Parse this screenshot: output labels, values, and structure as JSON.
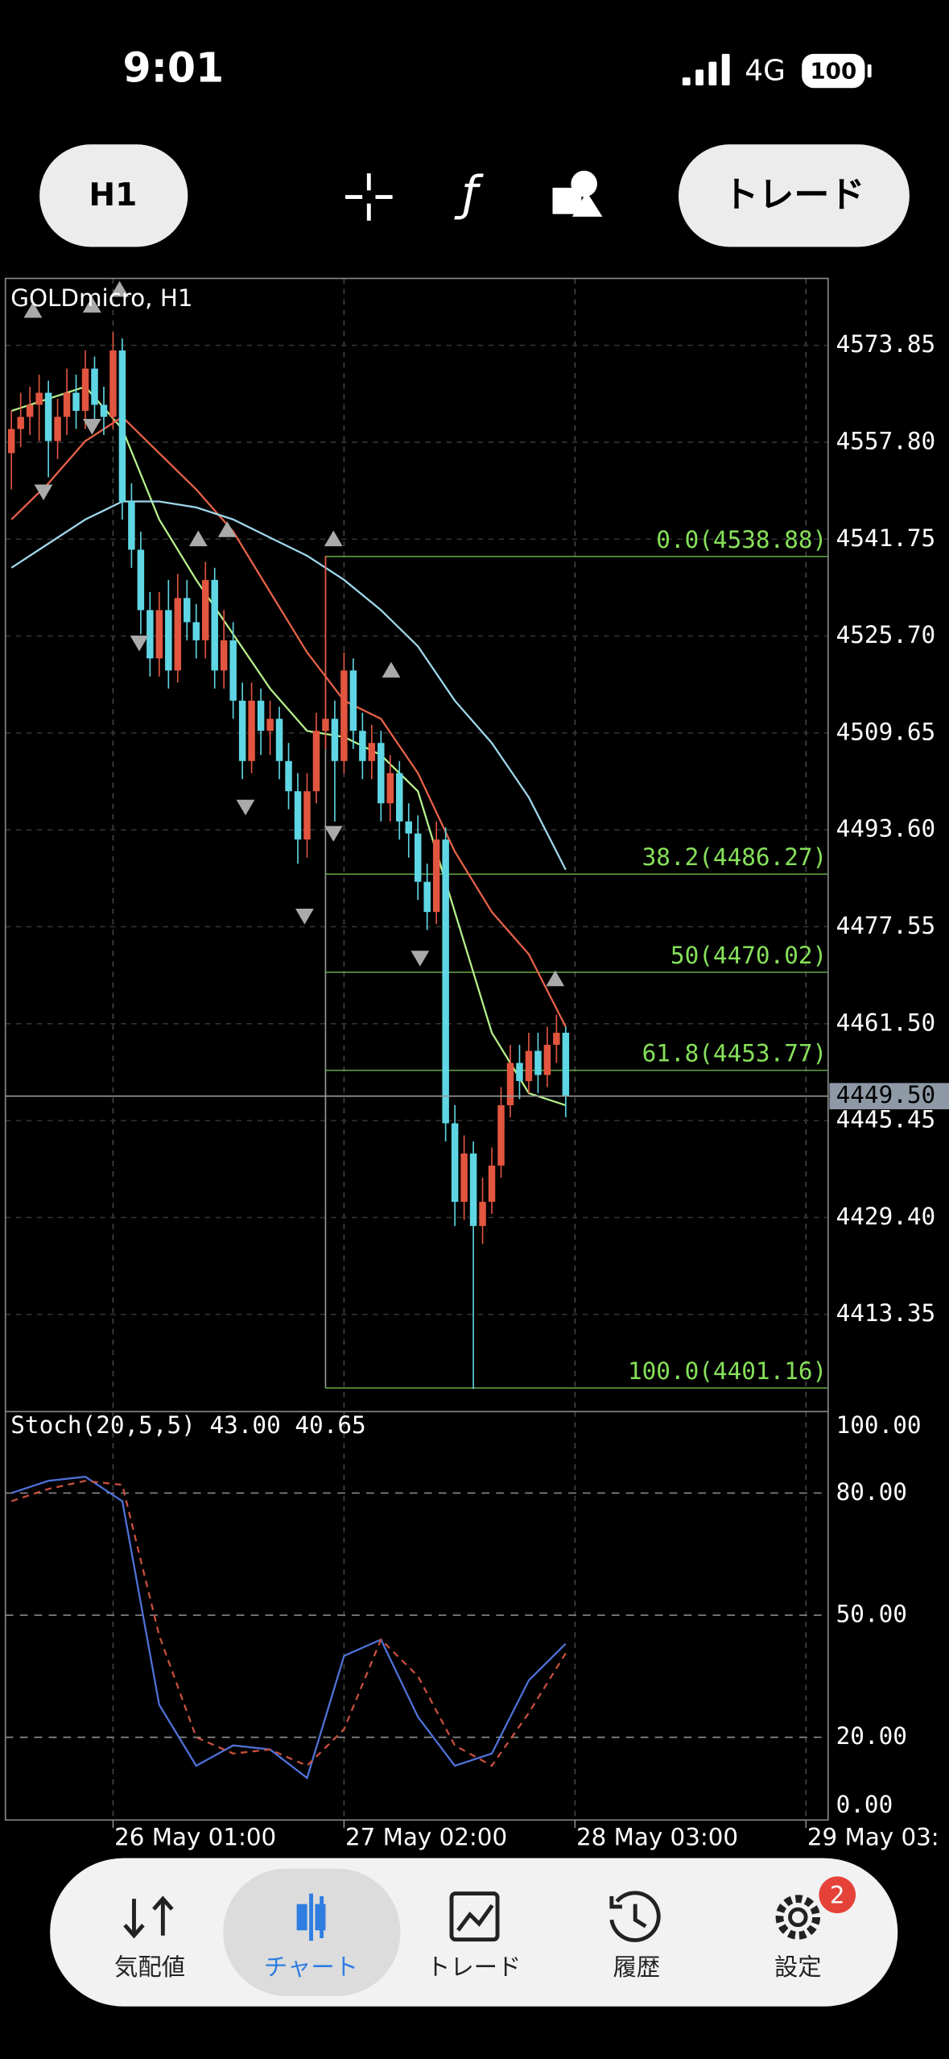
{
  "status_bar": {
    "time": "9:01",
    "network": "4G",
    "battery": "100"
  },
  "toolbar": {
    "timeframe": "H1",
    "trade_button": "トレード"
  },
  "chart_data": [
    {
      "type": "candlestick",
      "title": "GOLDmicro, H1",
      "up_color": "#e2553f",
      "down_color": "#5fd6e4",
      "x": [
        0,
        1,
        2,
        3,
        4,
        5,
        6,
        7,
        8,
        9,
        10,
        11,
        12,
        13,
        14,
        15,
        16,
        17,
        18,
        19,
        20,
        21,
        22,
        23,
        24,
        25,
        26,
        27,
        28,
        29,
        30,
        31,
        32,
        33,
        34,
        35,
        36,
        37,
        38,
        39,
        40,
        41,
        42,
        43,
        44,
        45,
        46,
        47,
        48,
        49,
        50,
        51,
        52,
        53,
        54,
        55,
        56,
        57,
        58,
        59,
        60
      ],
      "open": [
        4556,
        4560,
        4562,
        4564,
        4566,
        4558,
        4562,
        4566,
        4563,
        4570,
        4564,
        4562,
        4573,
        4548,
        4540,
        4530,
        4522,
        4530,
        4520,
        4532,
        4528,
        4525,
        4535,
        4520,
        4525,
        4515,
        4505,
        4515,
        4510,
        4512,
        4505,
        4500,
        4492,
        4500,
        4510,
        4512,
        4505,
        4520,
        4510,
        4505,
        4508,
        4498,
        4503,
        4495,
        4493,
        4485,
        4480,
        4492,
        4445,
        4432,
        4440,
        4428,
        4432,
        4438,
        4448,
        4455,
        4452,
        4457,
        4453,
        4458,
        4460
      ],
      "high": [
        4563,
        4566,
        4567,
        4569,
        4568,
        4565,
        4570,
        4569,
        4573,
        4572,
        4567,
        4576,
        4575,
        4551,
        4543,
        4533,
        4533,
        4535,
        4536,
        4535,
        4531,
        4538,
        4537,
        4530,
        4528,
        4518,
        4518,
        4517,
        4515,
        4514,
        4508,
        4503,
        4503,
        4513,
        4539,
        4515,
        4523,
        4522,
        4513,
        4511,
        4510,
        4506,
        4505,
        4498,
        4496,
        4488,
        4495,
        4494,
        4448,
        4443,
        4442,
        4436,
        4441,
        4451,
        4458,
        4458,
        4460,
        4460,
        4461,
        4463,
        4461
      ],
      "low": [
        4550,
        4557,
        4559,
        4558,
        4552,
        4555,
        4559,
        4560,
        4560,
        4561,
        4559,
        4560,
        4545,
        4537,
        4526,
        4519,
        4519,
        4517,
        4518,
        4525,
        4522,
        4522,
        4517,
        4517,
        4512,
        4502,
        4503,
        4506,
        4506,
        4502,
        4497,
        4488,
        4489,
        4498,
        4507,
        4495,
        4503,
        4507,
        4502,
        4502,
        4495,
        4495,
        4492,
        4489,
        4482,
        4477,
        4478,
        4442,
        4428,
        4429,
        4401,
        4425,
        4430,
        4436,
        4446,
        4449,
        4450,
        4450,
        4451,
        4455,
        4446
      ],
      "close": [
        4560,
        4562,
        4564,
        4566,
        4558,
        4562,
        4566,
        4563,
        4570,
        4564,
        4562,
        4573,
        4548,
        4540,
        4530,
        4522,
        4530,
        4520,
        4532,
        4528,
        4525,
        4535,
        4520,
        4525,
        4515,
        4505,
        4515,
        4510,
        4512,
        4505,
        4500,
        4492,
        4500,
        4510,
        4512,
        4505,
        4520,
        4510,
        4505,
        4508,
        4498,
        4503,
        4495,
        4493,
        4485,
        4480,
        4492,
        4445,
        4432,
        4440,
        4428,
        4432,
        4438,
        4448,
        4455,
        4452,
        4457,
        4453,
        4458,
        4460,
        4449.5
      ],
      "series": [
        {
          "color": "#b6f08a",
          "x": [
            0,
            4,
            8,
            12,
            16,
            20,
            24,
            28,
            32,
            36,
            40,
            44,
            48,
            52,
            56,
            60
          ],
          "values": [
            4563,
            4565,
            4567,
            4560,
            4545,
            4535,
            4526,
            4517,
            4510,
            4509,
            4506,
            4500,
            4480,
            4460,
            4450,
            4448
          ]
        },
        {
          "color": "#e8624a",
          "x": [
            0,
            4,
            8,
            12,
            16,
            20,
            24,
            28,
            32,
            36,
            40,
            44,
            48,
            52,
            56,
            60
          ],
          "values": [
            4545,
            4551,
            4558,
            4562,
            4556,
            4550,
            4543,
            4533,
            4523,
            4515,
            4512,
            4503,
            4490,
            4480,
            4473,
            4461
          ]
        },
        {
          "color": "#9fd8ec",
          "x": [
            0,
            4,
            8,
            12,
            16,
            20,
            24,
            28,
            32,
            36,
            40,
            44,
            48,
            52,
            56,
            60
          ],
          "values": [
            4537,
            4541,
            4545,
            4548,
            4548,
            4547,
            4545,
            4542,
            4539,
            4535,
            4530,
            4524,
            4515,
            4508,
            4499,
            4487
          ]
        }
      ],
      "fibonacci": {
        "color": "#86e05a",
        "start_x": 34,
        "end_x": 50,
        "levels": [
          {
            "value": 4538.88,
            "label": "0.0(4538.88)"
          },
          {
            "value": 4486.27,
            "label": "38.2(4486.27)"
          },
          {
            "value": 4470.02,
            "label": "50(4470.02)"
          },
          {
            "value": 4453.77,
            "label": "61.8(4453.77)"
          },
          {
            "value": 4401.16,
            "label": "100.0(4401.16)"
          }
        ]
      },
      "current_price": {
        "value": 4449.5,
        "label": "4449.50"
      },
      "xlim": [
        -0.65,
        88.4
      ],
      "ylim": [
        4397.25,
        4584.94
      ],
      "xticks": [
        {
          "value": 11,
          "label": "26 May 01:00"
        },
        {
          "value": 36,
          "label": "27 May 02:00"
        },
        {
          "value": 61,
          "label": "28 May 03:00"
        },
        {
          "value": 86,
          "label": "29 May 03:"
        }
      ],
      "yticks": [
        4573.85,
        {
          "value": 4557.8,
          "label": "4557.80"
        },
        4541.75,
        {
          "value": 4525.7,
          "label": "4525.70"
        },
        4509.65,
        {
          "value": 4493.6,
          "label": "4493.60"
        },
        4477.55,
        {
          "value": 4461.5,
          "label": "4461.50"
        },
        4445.45,
        {
          "value": 4429.4,
          "label": "4429.40"
        },
        4413.35
      ],
      "grid": true
    },
    {
      "type": "line",
      "title": "Stoch(20,5,5) 43.00 40.65",
      "ylim": [
        0,
        100
      ],
      "yticks": [
        {
          "value": 100,
          "label": "100.00"
        },
        {
          "value": 80,
          "label": "80.00"
        },
        {
          "value": 50,
          "label": "50.00"
        },
        {
          "value": 20,
          "label": "20.00"
        },
        {
          "value": 0,
          "label": "0.00"
        }
      ],
      "levels": [
        80,
        50,
        20
      ],
      "series": [
        {
          "color": "#4f72d8",
          "dash": false,
          "x": [
            0,
            4,
            8,
            12,
            16,
            20,
            24,
            28,
            32,
            36,
            40,
            44,
            48,
            52,
            56,
            60
          ],
          "values": [
            80,
            83,
            84,
            78,
            28,
            13,
            18,
            17,
            10,
            40,
            44,
            25,
            13,
            16,
            34,
            43
          ]
        },
        {
          "color": "#c8503e",
          "dash": true,
          "x": [
            0,
            4,
            8,
            12,
            16,
            20,
            24,
            28,
            32,
            36,
            40,
            44,
            48,
            52,
            56,
            60
          ],
          "values": [
            78,
            81,
            83,
            82,
            45,
            20,
            16,
            17,
            13,
            22,
            44,
            35,
            18,
            13,
            26,
            40.65
          ]
        }
      ]
    }
  ],
  "nav": {
    "items": [
      "気配値",
      "チャート",
      "トレード",
      "履歴",
      "設定"
    ],
    "badge": "2"
  }
}
